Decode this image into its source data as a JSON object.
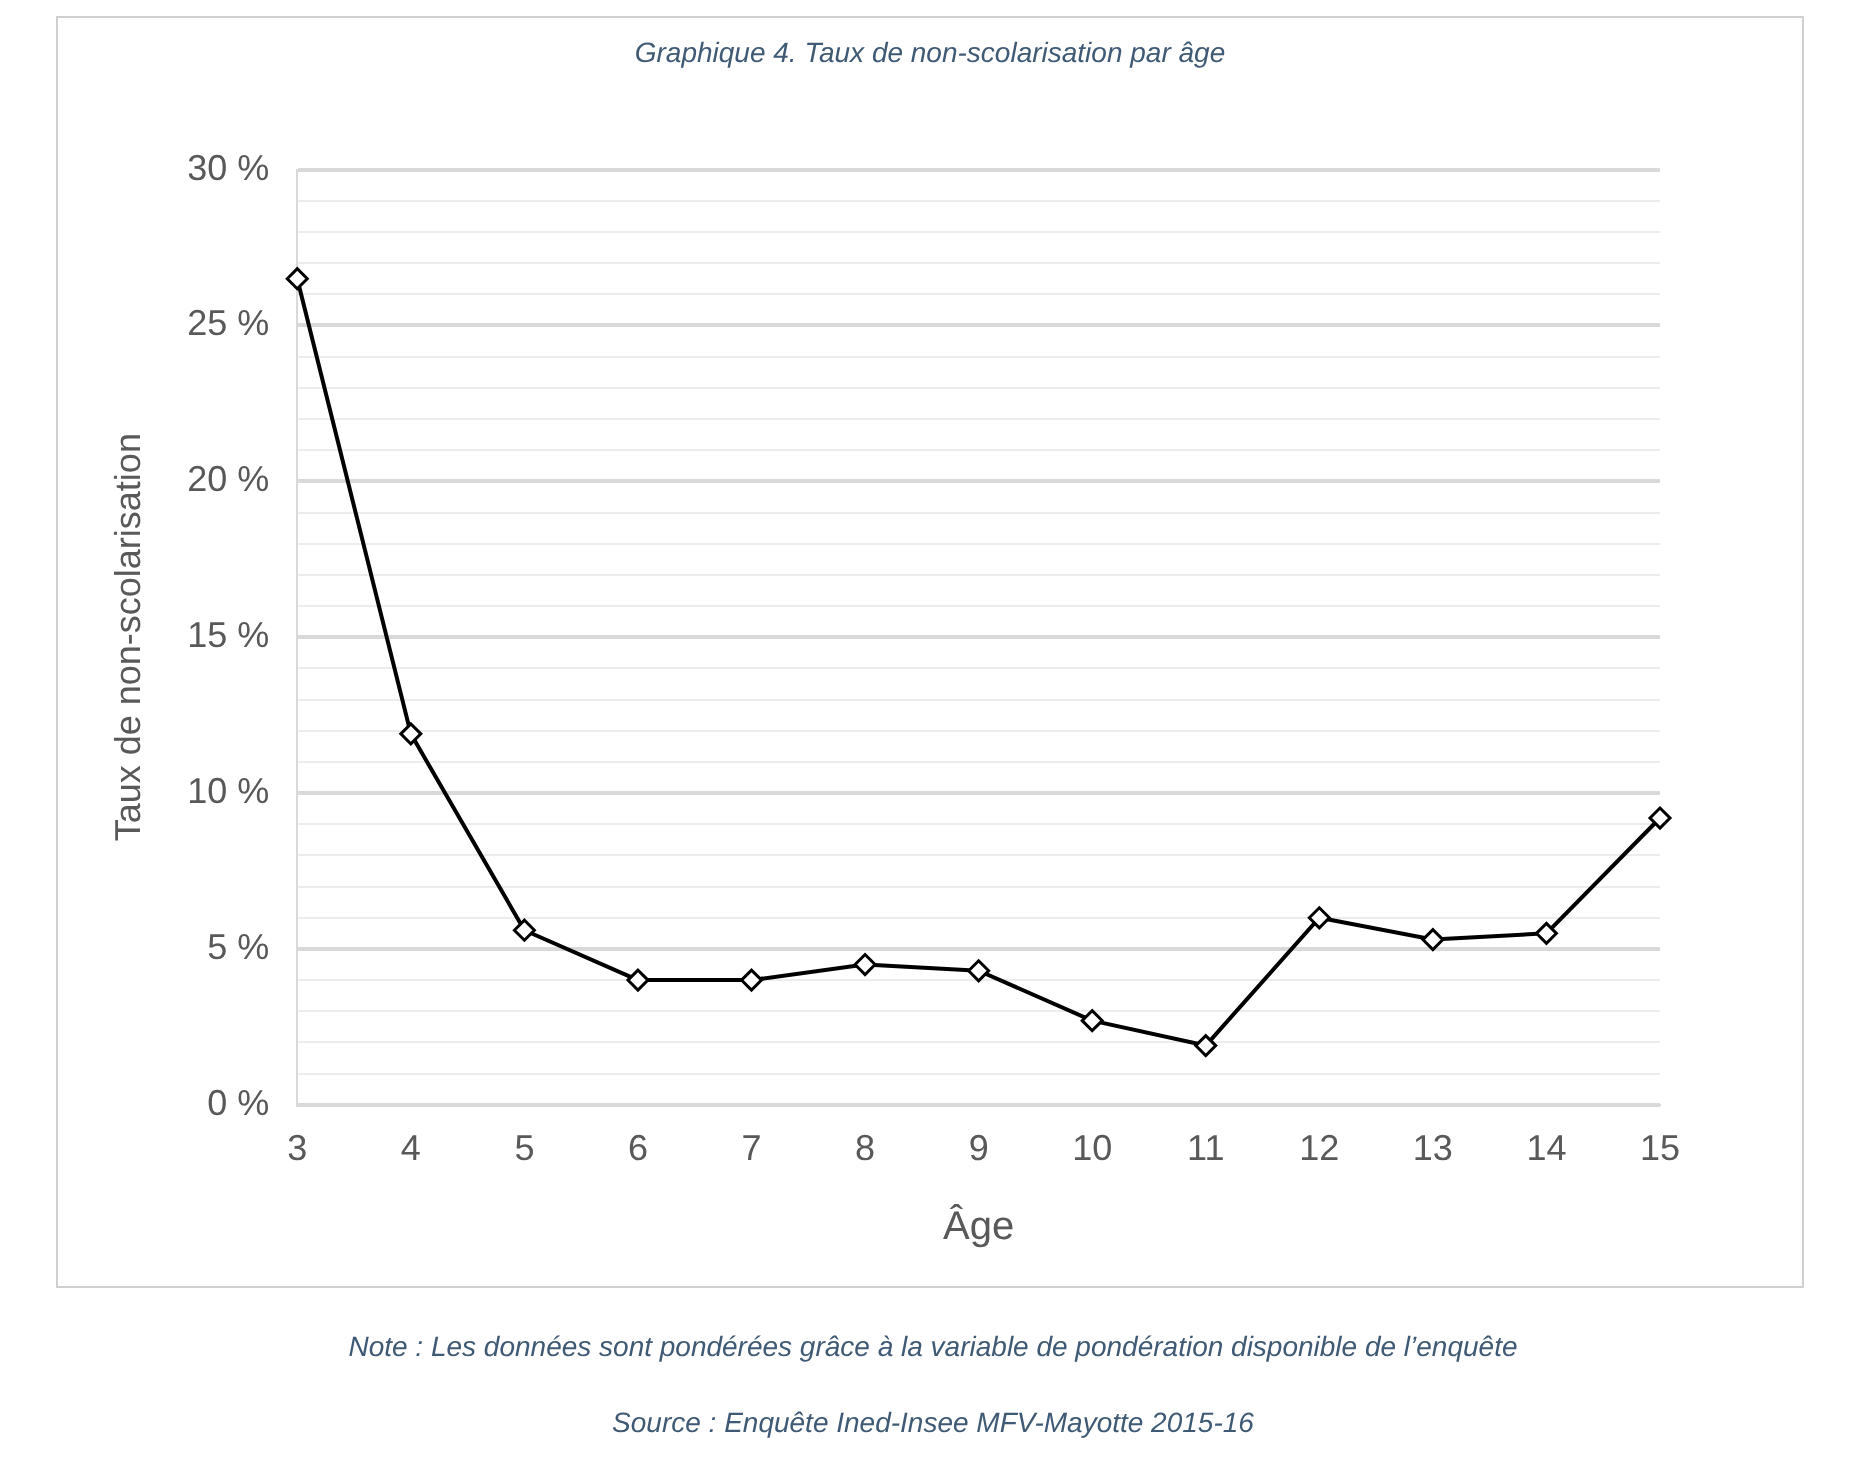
{
  "chart_data": {
    "type": "line",
    "title": "Graphique 4. Taux de non-scolarisation par âge",
    "xlabel": "Âge",
    "ylabel": "Taux de non-scolarisation",
    "categories": [
      "3",
      "4",
      "5",
      "6",
      "7",
      "8",
      "9",
      "10",
      "11",
      "12",
      "13",
      "14",
      "15"
    ],
    "series": [
      {
        "color": "#000000",
        "values": [
          26.5,
          11.9,
          5.6,
          4.0,
          4.0,
          4.5,
          4.3,
          2.7,
          1.9,
          6.0,
          5.3,
          5.5,
          9.2
        ]
      }
    ],
    "ylim": [
      0,
      30
    ],
    "yticks": [
      {
        "value": 0,
        "label": "0 %"
      },
      {
        "value": 1,
        "label": null
      },
      {
        "value": 2,
        "label": null
      },
      {
        "value": 3,
        "label": null
      },
      {
        "value": 4,
        "label": null
      },
      {
        "value": 5,
        "label": "5 %"
      },
      {
        "value": 6,
        "label": null
      },
      {
        "value": 7,
        "label": null
      },
      {
        "value": 8,
        "label": null
      },
      {
        "value": 9,
        "label": null
      },
      {
        "value": 10,
        "label": "10 %"
      },
      {
        "value": 11,
        "label": null
      },
      {
        "value": 12,
        "label": null
      },
      {
        "value": 13,
        "label": null
      },
      {
        "value": 14,
        "label": null
      },
      {
        "value": 15,
        "label": "15 %"
      },
      {
        "value": 16,
        "label": null
      },
      {
        "value": 17,
        "label": null
      },
      {
        "value": 18,
        "label": null
      },
      {
        "value": 19,
        "label": null
      },
      {
        "value": 20,
        "label": "20 %"
      },
      {
        "value": 21,
        "label": null
      },
      {
        "value": 22,
        "label": null
      },
      {
        "value": 23,
        "label": null
      },
      {
        "value": 24,
        "label": null
      },
      {
        "value": 25,
        "label": "25 %"
      },
      {
        "value": 26,
        "label": null
      },
      {
        "value": 27,
        "label": null
      },
      {
        "value": 28,
        "label": null
      },
      {
        "value": 29,
        "label": null
      },
      {
        "value": 30,
        "label": "30 %"
      }
    ],
    "grid": "y",
    "legend": false,
    "marker": "diamond",
    "line_style": "solid",
    "annotations": [
      "Note : Les données sont pondérées grâce à la variable de pondération disponible de l’enquête",
      "Source : Enquête Ined-Insee MFV-Mayotte 2015-16"
    ]
  }
}
